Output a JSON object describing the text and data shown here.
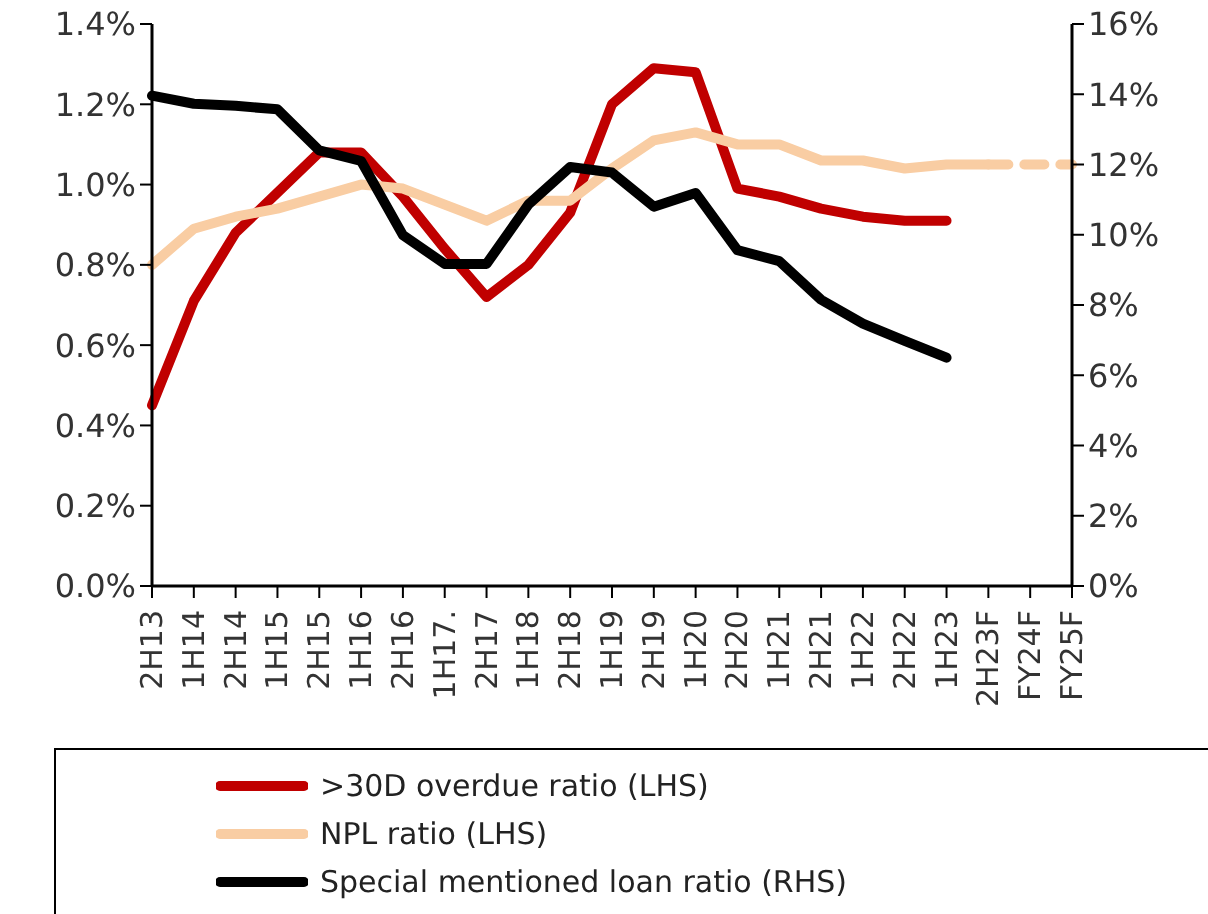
{
  "chart_data": {
    "type": "line",
    "categories": [
      "2H13",
      "1H14",
      "2H14",
      "1H15",
      "2H15",
      "1H16",
      "2H16",
      "1H17.",
      "2H17",
      "1H18",
      "2H18",
      "1H19",
      "2H19",
      "1H20",
      "2H20",
      "1H21",
      "2H21",
      "1H22",
      "2H22",
      "1H23",
      "2H23F",
      "FY24F",
      "FY25F"
    ],
    "series": [
      {
        "name": ">30D overdue ratio (LHS)",
        "color": "#c00000",
        "values": [
          0.45,
          0.71,
          0.88,
          0.98,
          1.08,
          1.08,
          0.97,
          0.84,
          0.72,
          0.8,
          0.93,
          1.2,
          1.29,
          1.28,
          0.99,
          0.97,
          0.94,
          0.92,
          0.91,
          0.91,
          null,
          null,
          null
        ]
      },
      {
        "name": "NPL ratio (LHS)",
        "color": "#f9cda3",
        "values": [
          0.8,
          0.89,
          0.92,
          0.94,
          0.97,
          1.0,
          0.99,
          0.95,
          0.91,
          0.96,
          0.96,
          1.04,
          1.11,
          1.13,
          1.1,
          1.1,
          1.06,
          1.06,
          1.04,
          1.05,
          1.05,
          null,
          null
        ]
      },
      {
        "color": "#f9cda3",
        "line_style": "dashed",
        "values": [
          null,
          null,
          null,
          null,
          null,
          null,
          null,
          null,
          null,
          null,
          null,
          null,
          null,
          null,
          null,
          null,
          null,
          null,
          null,
          null,
          1.05,
          1.05,
          1.05
        ]
      },
      {
        "name": "Special mentioned loan ratio (RHS)",
        "color": "#000000",
        "axis": "y2",
        "values": [
          13.96,
          13.73,
          13.67,
          13.57,
          12.4,
          12.1,
          9.99,
          9.17,
          9.17,
          10.86,
          11.93,
          11.77,
          10.8,
          11.19,
          9.56,
          9.25,
          8.15,
          7.47,
          6.98,
          6.5,
          null,
          null,
          null
        ]
      }
    ],
    "ylim": [
      0,
      1.4
    ],
    "yticks": [
      {
        "value": 0,
        "label": "0.0%"
      },
      {
        "value": 0.2,
        "label": "0.2%"
      },
      {
        "value": 0.4,
        "label": "0.4%"
      },
      {
        "value": 0.6,
        "label": "0.6%"
      },
      {
        "value": 0.8,
        "label": "0.8%"
      },
      {
        "value": 1.0,
        "label": "1.0%"
      },
      {
        "value": 1.2,
        "label": "1.2%"
      },
      {
        "value": 1.4,
        "label": "1.4%"
      }
    ],
    "y2lim": [
      0,
      16
    ],
    "y2ticks": [
      {
        "value": 0,
        "label": "0%"
      },
      {
        "value": 2,
        "label": "2%"
      },
      {
        "value": 4,
        "label": "4%"
      },
      {
        "value": 6,
        "label": "6%"
      },
      {
        "value": 8,
        "label": "8%"
      },
      {
        "value": 10,
        "label": "10%"
      },
      {
        "value": 12,
        "label": "12%"
      },
      {
        "value": 14,
        "label": "14%"
      },
      {
        "value": 16,
        "label": "16%"
      }
    ],
    "grid": false,
    "legend": "bottom",
    "marker": "none",
    "line_style": "solid"
  }
}
